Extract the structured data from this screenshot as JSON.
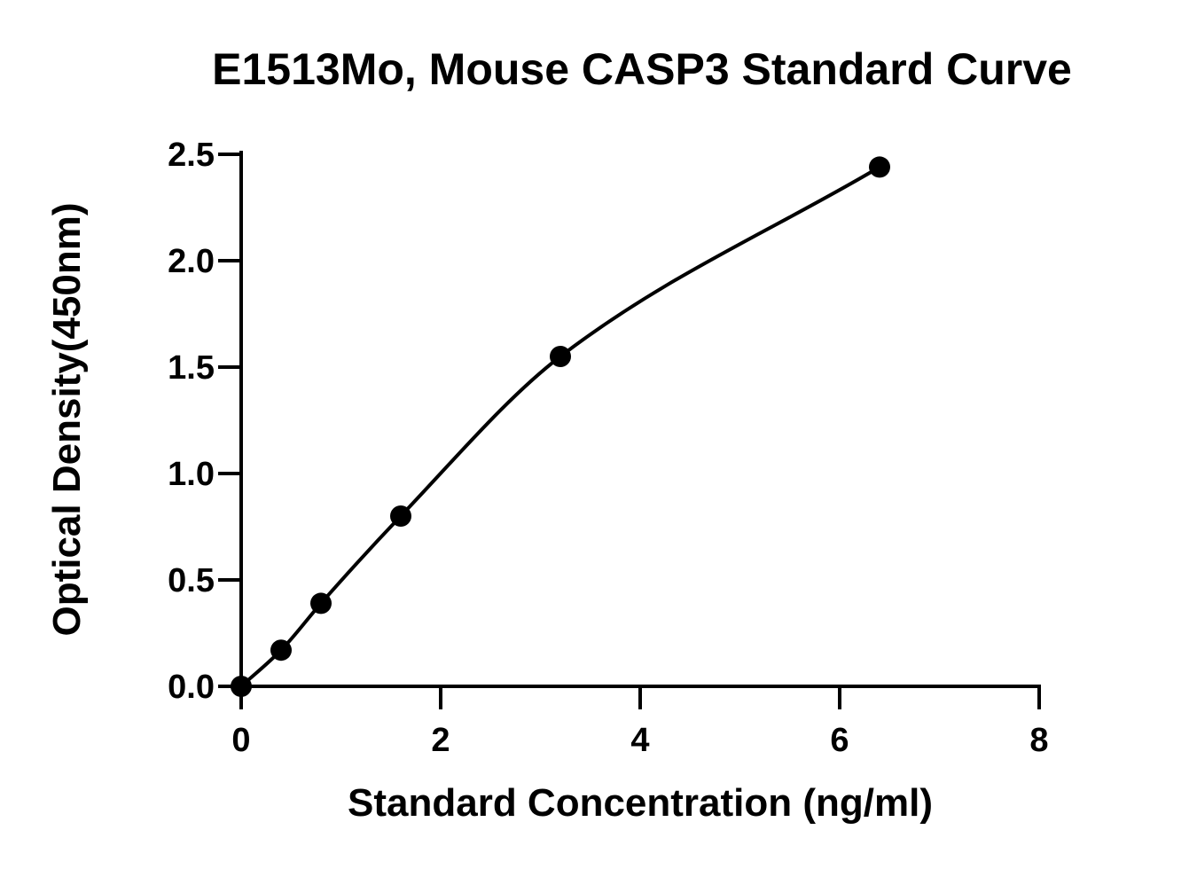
{
  "chart_data": {
    "type": "scatter",
    "title": "E1513Mo, Mouse CASP3 Standard Curve",
    "xlabel": "Standard Concentration (ng/ml)",
    "ylabel": "Optical Density(450nm)",
    "xlim": [
      0,
      8
    ],
    "ylim": [
      0,
      2.5
    ],
    "x_ticks": [
      "0",
      "2",
      "4",
      "6",
      "8"
    ],
    "y_ticks": [
      "0.0",
      "0.5",
      "1.0",
      "1.5",
      "2.0",
      "2.5"
    ],
    "series": [
      {
        "points": [
          {
            "x": 0,
            "y": 0.0
          },
          {
            "x": 0.4,
            "y": 0.17
          },
          {
            "x": 0.8,
            "y": 0.39
          },
          {
            "x": 1.6,
            "y": 0.8
          },
          {
            "x": 3.2,
            "y": 1.55
          },
          {
            "x": 6.4,
            "y": 2.44
          }
        ],
        "fit_curve": "smooth",
        "color": "#000000"
      }
    ],
    "grid": false,
    "legend": "none"
  }
}
